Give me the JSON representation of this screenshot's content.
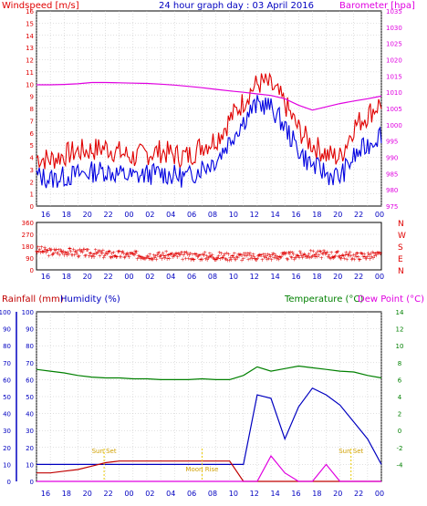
{
  "title": "24 hour graph day : 03 April 2016",
  "colors": {
    "wind": "#e00000",
    "gust": "#e00000",
    "speed": "#0000e0",
    "baro": "#e000e0",
    "dir": "#e00000",
    "rain": "#c00000",
    "humidity": "#0000c0",
    "temp": "#008000",
    "dew": "#e000e0",
    "grid": "#c0c0c0",
    "annot": "#e8c800"
  },
  "chart_data": [
    {
      "id": "wind",
      "type": "line",
      "title": "24 hour graph day : 03 April 2016",
      "ylabel_left": "Windspeed [m/s]",
      "ylabel_right": "Barometer [hpa]",
      "x_ticks": [
        "16",
        "18",
        "20",
        "22",
        "00",
        "02",
        "04",
        "06",
        "08",
        "10",
        "12",
        "14",
        "16",
        "18",
        "20",
        "22",
        "00"
      ],
      "ylim_left": [
        0,
        16
      ],
      "y_ticks_left": [
        "0",
        "1",
        "2",
        "3",
        "4",
        "5",
        "6",
        "7",
        "8",
        "9",
        "10",
        "11",
        "12",
        "13",
        "14",
        "15",
        "16"
      ],
      "ylim_right": [
        975,
        1035
      ],
      "y_ticks_right": [
        "975",
        "980",
        "985",
        "990",
        "995",
        "1000",
        "1005",
        "1010",
        "1015",
        "1020",
        "1025",
        "1030",
        "1035"
      ],
      "x_hours": [
        0,
        1,
        2,
        3,
        4,
        5,
        6,
        7,
        8,
        9,
        10,
        11,
        12,
        13,
        14,
        15,
        16,
        17,
        18,
        19,
        20,
        21,
        22,
        23,
        24,
        25
      ],
      "series": [
        {
          "name": "Gust",
          "axis": "left",
          "values": [
            4.0,
            3.8,
            4.2,
            4.5,
            4.6,
            4.8,
            4.4,
            4.0,
            4.3,
            4.5,
            4.2,
            4.0,
            4.6,
            4.3,
            4.4,
            4.1,
            4.5,
            4.8,
            5.0,
            4.6,
            4.4,
            4.2,
            4.0,
            6.5,
            7.5,
            8.5
          ]
        },
        {
          "name": "Speed",
          "axis": "left",
          "values": [
            2.5,
            2.2,
            2.4,
            2.6,
            2.8,
            2.9,
            2.6,
            2.4,
            2.6,
            2.7,
            2.5,
            2.3,
            2.8,
            2.6,
            2.7,
            2.5,
            2.8,
            3.0,
            3.1,
            2.9,
            2.7,
            2.6,
            2.4,
            4.0,
            5.0,
            6.0
          ]
        },
        {
          "name": "Barometer",
          "axis": "right",
          "values": [
            1012.3,
            1012.3,
            1012.4,
            1012.6,
            1013.0,
            1013.0,
            1012.9,
            1012.8,
            1012.7,
            1012.5,
            1012.2,
            1011.8,
            1011.4,
            1010.9,
            1010.4,
            1010.0,
            1009.5,
            1009.0,
            1008.0,
            1006.0,
            1004.5,
            1005.5,
            1006.5,
            1007.3,
            1008.0,
            1008.8
          ]
        }
      ]
    },
    {
      "id": "direction",
      "type": "scatter",
      "ylim": [
        0,
        360
      ],
      "y_ticks": [
        "0",
        "90",
        "180",
        "270",
        "360"
      ],
      "compass": [
        "N",
        "W",
        "S",
        "E",
        "N"
      ],
      "x_ticks": [
        "16",
        "18",
        "20",
        "22",
        "00",
        "02",
        "04",
        "06",
        "08",
        "10",
        "12",
        "14",
        "16",
        "18",
        "20",
        "22",
        "00"
      ],
      "x_hours": [
        0,
        1,
        2,
        3,
        4,
        5,
        6,
        7,
        8,
        9,
        10,
        11,
        12,
        13,
        14,
        15,
        16,
        17,
        18,
        19,
        20,
        21,
        22,
        23,
        24,
        25
      ],
      "values": [
        150,
        135,
        140,
        130,
        125,
        120,
        115,
        112,
        110,
        108,
        108,
        105,
        104,
        104,
        103,
        102,
        101,
        103,
        104,
        110,
        120,
        115,
        110,
        105,
        108,
        112
      ]
    },
    {
      "id": "rain-humidity-temp",
      "type": "line",
      "ylabel_left_1": "Rainfall (mm)",
      "ylabel_left_2": "Humidity (%)",
      "ylabel_right_1": "Temperature (°C)",
      "ylabel_right_2": "Dew Point (°C)",
      "ylim_left": [
        0,
        100
      ],
      "y_ticks_left": [
        "0",
        "10",
        "20",
        "30",
        "40",
        "50",
        "60",
        "70",
        "80",
        "90",
        "100"
      ],
      "ylim_right": [
        -6,
        14
      ],
      "y_ticks_right": [
        "-4",
        "-2",
        "0",
        "2",
        "4",
        "6",
        "8",
        "10",
        "12",
        "14"
      ],
      "x_ticks": [
        "16",
        "18",
        "20",
        "22",
        "00",
        "02",
        "04",
        "06",
        "08",
        "10",
        "12",
        "14",
        "16",
        "18",
        "20",
        "22",
        "00"
      ],
      "x_hours": [
        0,
        1,
        2,
        3,
        4,
        5,
        6,
        7,
        8,
        9,
        10,
        11,
        12,
        13,
        14,
        15,
        16,
        17,
        18,
        19,
        20,
        21,
        22,
        23,
        24,
        25
      ],
      "series": [
        {
          "name": "Humidity",
          "axis": "left",
          "values": [
            10,
            10,
            10,
            10,
            10,
            10,
            10,
            10,
            10,
            10,
            10,
            10,
            10,
            10,
            10,
            10,
            51,
            49,
            25,
            44,
            55,
            51,
            45,
            35,
            25,
            10
          ]
        },
        {
          "name": "Rainfall",
          "axis": "left",
          "values": [
            5,
            5,
            6,
            7,
            9,
            11,
            12,
            12,
            12,
            12,
            12,
            12,
            12,
            12,
            12,
            0,
            0,
            0,
            0,
            0,
            0,
            0,
            0,
            0,
            0,
            0
          ]
        },
        {
          "name": "Temperature",
          "axis": "right",
          "values": [
            7.2,
            7.0,
            6.8,
            6.5,
            6.3,
            6.2,
            6.2,
            6.1,
            6.1,
            6.0,
            6.0,
            6.0,
            6.1,
            6.0,
            6.0,
            6.5,
            7.5,
            7.0,
            7.3,
            7.6,
            7.4,
            7.2,
            7.0,
            6.9,
            6.5,
            6.2
          ]
        },
        {
          "name": "Dew Point",
          "axis": "right",
          "values": [
            -6,
            -6,
            -6,
            -6,
            -6,
            -6,
            -6,
            -6,
            -6,
            -6,
            -6,
            -6,
            -6,
            -6,
            -6,
            -6,
            -6,
            -3,
            -5,
            -6,
            -6,
            -4,
            -6,
            -6,
            -6,
            -6
          ]
        }
      ],
      "annotations": [
        "Sun Set",
        "Moon Rise",
        "Sun Set"
      ]
    }
  ]
}
